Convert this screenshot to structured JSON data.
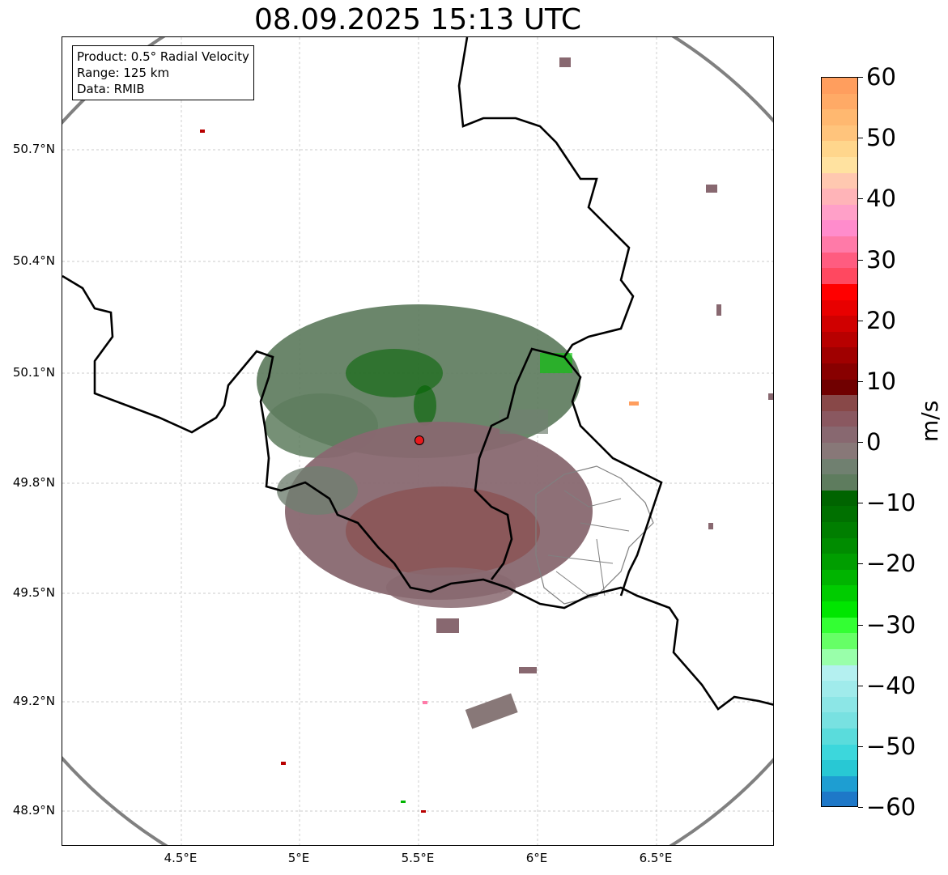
{
  "title": "08.09.2025 15:13 UTC",
  "info_box": {
    "product": "Product: 0.5° Radial Velocity",
    "range": "Range: 125 km",
    "data": "Data: RMIB"
  },
  "axes": {
    "lat_ticks": [
      "50.7°N",
      "50.4°N",
      "50.1°N",
      "49.8°N",
      "49.5°N",
      "49.2°N",
      "48.9°N"
    ],
    "lon_ticks": [
      "4.5°E",
      "5°E",
      "5.5°E",
      "6°E",
      "6.5°E"
    ],
    "lat_values": [
      50.7,
      50.4,
      50.1,
      49.8,
      49.5,
      49.2,
      48.9
    ],
    "lon_values": [
      4.5,
      5.0,
      5.5,
      6.0,
      6.5
    ],
    "lat_range": [
      48.8,
      50.99
    ],
    "lon_range": [
      4.0,
      7.0
    ],
    "grid": true
  },
  "radar": {
    "site_lat": 49.915,
    "site_lon": 5.505,
    "range_km": 125,
    "site_marker_color": "#e8191c",
    "range_ring_color": "#808080"
  },
  "colorbar": {
    "label": "m/s",
    "min": -60,
    "max": 60,
    "ticks": [
      "60",
      "50",
      "40",
      "30",
      "20",
      "10",
      "0",
      "−10",
      "−20",
      "−30",
      "−40",
      "−50",
      "−60"
    ],
    "colors_top_to_bottom": [
      "#ff9e5e",
      "#ffaa66",
      "#ffb870",
      "#ffc47c",
      "#ffd68c",
      "#ffe2a0",
      "#ffc8b0",
      "#ffb4b8",
      "#ffa0c8",
      "#ff8ccc",
      "#ff7aa8",
      "#ff5c80",
      "#ff4860",
      "#ff0000",
      "#e80000",
      "#d00000",
      "#b80000",
      "#a00000",
      "#880000",
      "#700000",
      "#884848",
      "#8a5860",
      "#886870",
      "#887878",
      "#708070",
      "#5e7c5e",
      "#006400",
      "#007000",
      "#007e00",
      "#008c00",
      "#009e00",
      "#00b400",
      "#00cc00",
      "#00e600",
      "#33ff33",
      "#66ff66",
      "#99ffaa",
      "#b4f0f0",
      "#a0ebeb",
      "#8ce6e6",
      "#78e1e1",
      "#5adcdc",
      "#3cd7dc",
      "#28c8d4",
      "#1e9ed2",
      "#1e78c8"
    ]
  }
}
